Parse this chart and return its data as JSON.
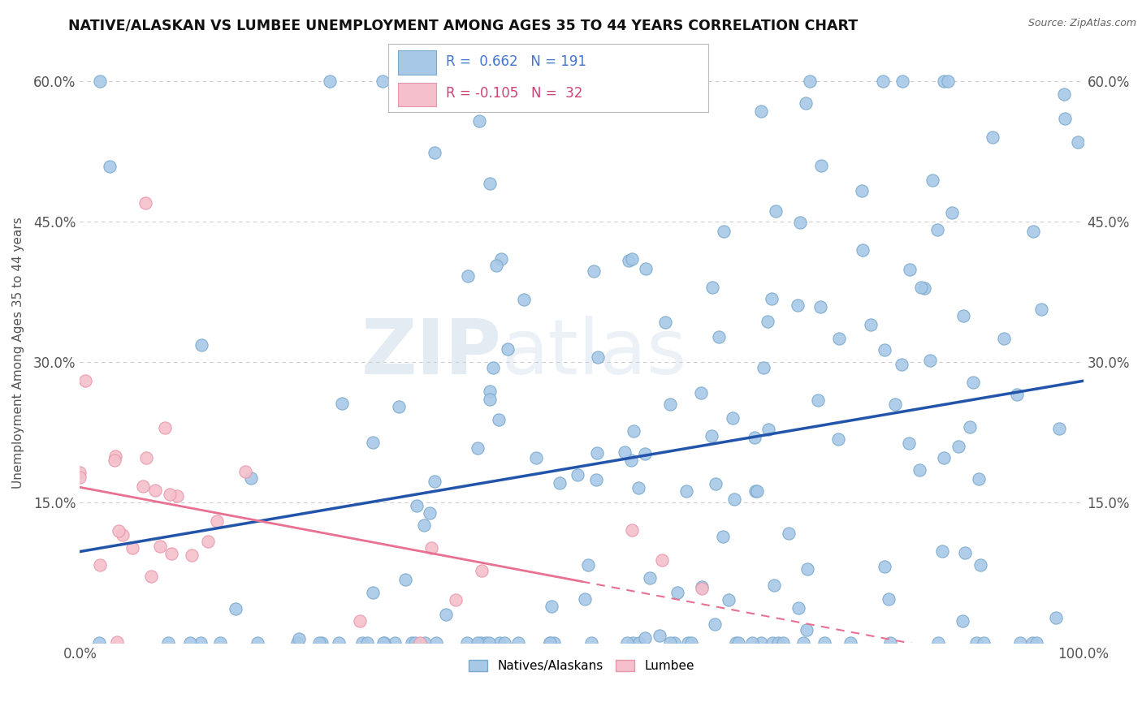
{
  "title": "NATIVE/ALASKAN VS LUMBEE UNEMPLOYMENT AMONG AGES 35 TO 44 YEARS CORRELATION CHART",
  "source": "Source: ZipAtlas.com",
  "ylabel": "Unemployment Among Ages 35 to 44 years",
  "xlim": [
    0.0,
    1.0
  ],
  "ylim": [
    0.0,
    0.62
  ],
  "ytick_vals": [
    0.15,
    0.3,
    0.45,
    0.6
  ],
  "ytick_labels": [
    "15.0%",
    "30.0%",
    "45.0%",
    "60.0%"
  ],
  "xtick_vals": [
    0.0,
    1.0
  ],
  "xtick_labels": [
    "0.0%",
    "100.0%"
  ],
  "blue_color": "#a8c8e8",
  "blue_edge_color": "#7aaacb",
  "pink_color": "#f5c0cb",
  "pink_edge_color": "#e896aa",
  "blue_line_color": "#2255aa",
  "pink_line_color": "#e87090",
  "watermark_color": "#d0dde8",
  "background_color": "#ffffff",
  "grid_color": "#cccccc",
  "blue_R": 0.662,
  "blue_N": 191,
  "pink_R": -0.105,
  "pink_N": 32,
  "legend_blue_text_color": "#4477cc",
  "legend_pink_text_color": "#cc4477",
  "title_color": "#111111",
  "source_color": "#666666",
  "axis_label_color": "#555555",
  "tick_color": "#555555"
}
